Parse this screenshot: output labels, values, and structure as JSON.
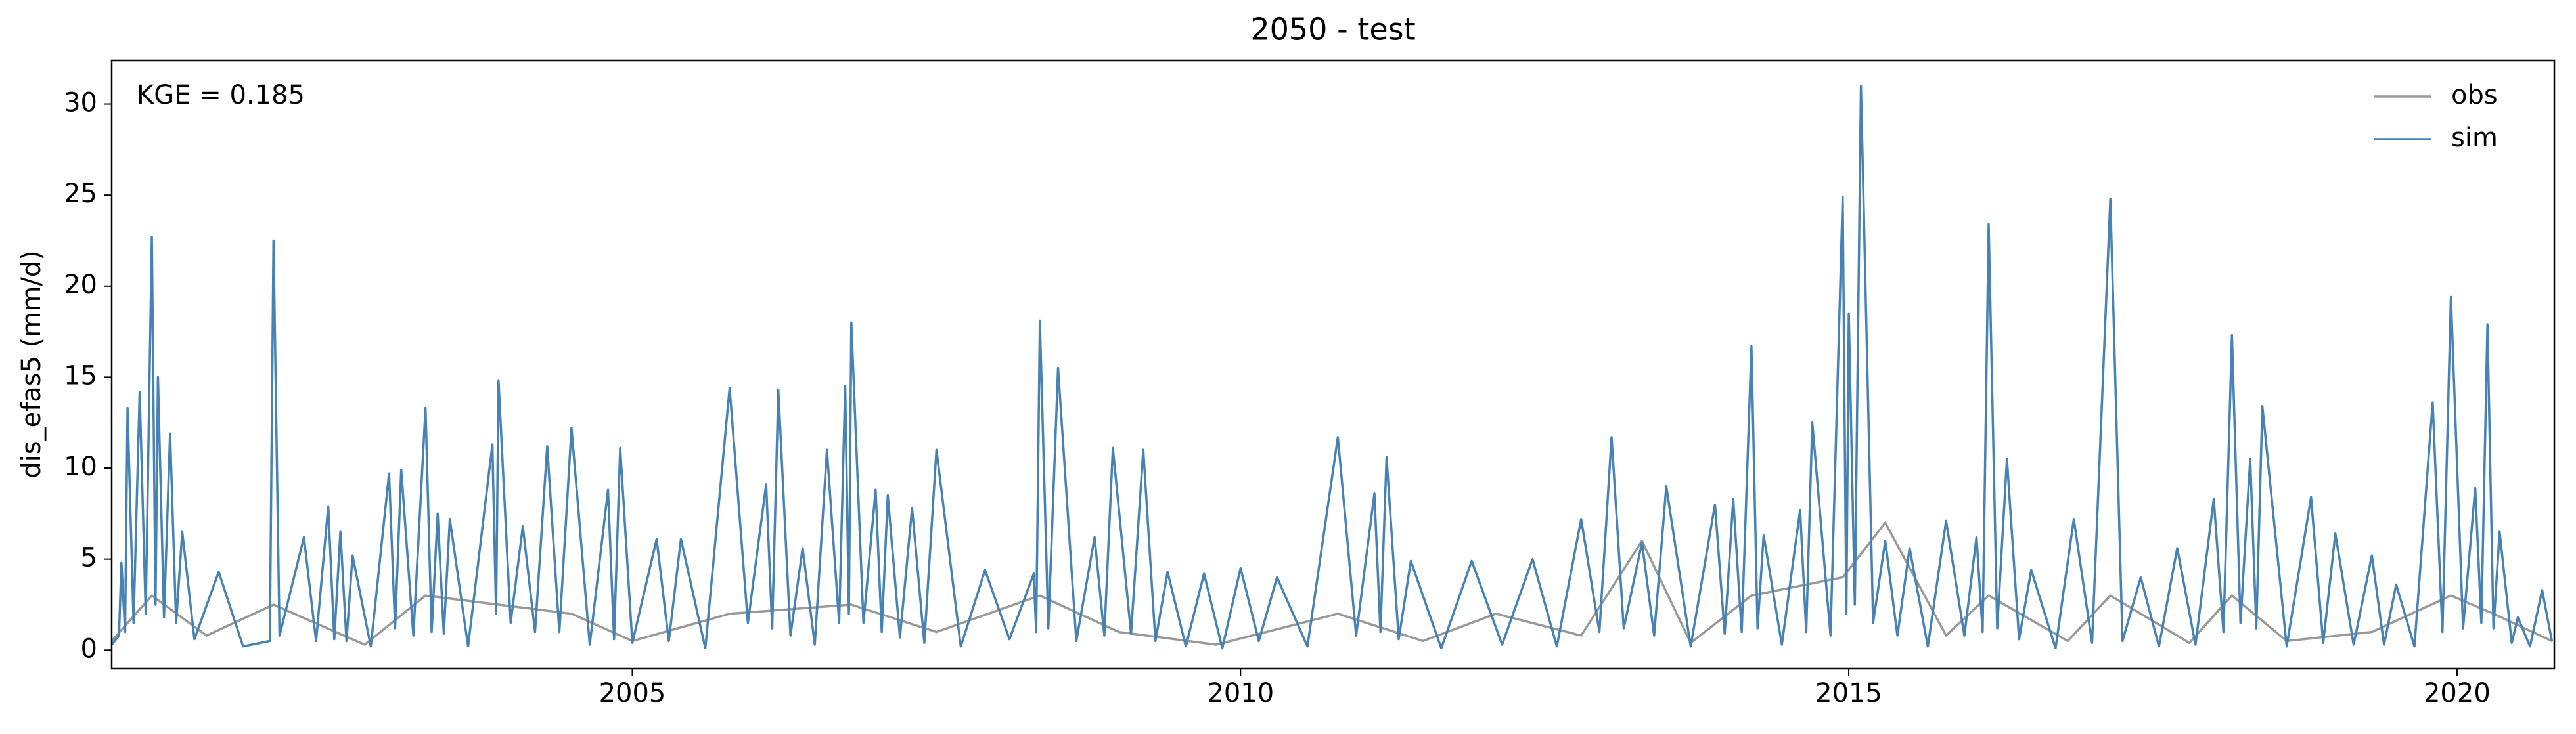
{
  "chart_data": {
    "type": "line",
    "title": "2050 - test",
    "y_label": "dis_efas5 (mm/d)",
    "annotation": "KGE = 0.185",
    "xlim": [
      2000.72,
      2020.8
    ],
    "xticks": [
      2005,
      2010,
      2015,
      2020
    ],
    "ylim": [
      -1,
      32.4
    ],
    "yticks": [
      0,
      5,
      10,
      15,
      20,
      25,
      30
    ],
    "grid": false,
    "legend": "upper right",
    "series": [
      {
        "name": "obs",
        "color": "#999999",
        "x": [
          2000.72,
          2001.05,
          2001.5,
          2002.05,
          2002.8,
          2003.3,
          2003.9,
          2004.5,
          2005.0,
          2005.8,
          2006.8,
          2007.5,
          2008.35,
          2009.0,
          2009.8,
          2010.8,
          2011.5,
          2012.1,
          2012.8,
          2013.3,
          2013.7,
          2014.2,
          2014.95,
          2015.3,
          2015.8,
          2016.15,
          2016.8,
          2017.15,
          2017.8,
          2018.15,
          2018.6,
          2019.3,
          2019.95,
          2020.3,
          2020.78
        ],
        "values": [
          0.5,
          3.0,
          0.8,
          2.5,
          0.3,
          3.0,
          2.5,
          2.0,
          0.5,
          2.0,
          2.5,
          1.0,
          3.0,
          1.0,
          0.3,
          2.0,
          0.5,
          2.0,
          0.8,
          6.0,
          0.4,
          3.0,
          4.0,
          7.0,
          0.8,
          3.0,
          0.5,
          3.0,
          0.4,
          3.0,
          0.5,
          1.0,
          3.0,
          2.0,
          0.5
        ]
      },
      {
        "name": "sim",
        "color": "#4682b4",
        "x": [
          2000.72,
          2000.78,
          2000.8,
          2000.83,
          2000.85,
          2000.9,
          2000.95,
          2001.0,
          2001.05,
          2001.08,
          2001.1,
          2001.15,
          2001.2,
          2001.25,
          2001.3,
          2001.4,
          2001.6,
          2001.8,
          2002.02,
          2002.05,
          2002.1,
          2002.3,
          2002.4,
          2002.5,
          2002.55,
          2002.6,
          2002.65,
          2002.7,
          2002.85,
          2003.0,
          2003.05,
          2003.1,
          2003.2,
          2003.3,
          2003.35,
          2003.4,
          2003.45,
          2003.5,
          2003.65,
          2003.85,
          2003.88,
          2003.9,
          2004.0,
          2004.1,
          2004.2,
          2004.3,
          2004.4,
          2004.5,
          2004.65,
          2004.8,
          2004.85,
          2004.9,
          2005.0,
          2005.2,
          2005.3,
          2005.4,
          2005.6,
          2005.8,
          2005.95,
          2006.1,
          2006.15,
          2006.2,
          2006.3,
          2006.4,
          2006.5,
          2006.6,
          2006.7,
          2006.75,
          2006.78,
          2006.8,
          2006.9,
          2007.0,
          2007.05,
          2007.1,
          2007.2,
          2007.3,
          2007.4,
          2007.5,
          2007.7,
          2007.9,
          2008.1,
          2008.3,
          2008.32,
          2008.35,
          2008.42,
          2008.5,
          2008.65,
          2008.8,
          2008.88,
          2008.95,
          2009.1,
          2009.2,
          2009.3,
          2009.4,
          2009.55,
          2009.7,
          2009.85,
          2010.0,
          2010.15,
          2010.3,
          2010.55,
          2010.8,
          2010.95,
          2011.1,
          2011.15,
          2011.2,
          2011.3,
          2011.4,
          2011.65,
          2011.9,
          2012.15,
          2012.4,
          2012.6,
          2012.8,
          2012.95,
          2013.05,
          2013.15,
          2013.3,
          2013.4,
          2013.5,
          2013.7,
          2013.9,
          2013.98,
          2014.05,
          2014.12,
          2014.2,
          2014.25,
          2014.3,
          2014.45,
          2014.6,
          2014.65,
          2014.7,
          2014.85,
          2014.95,
          2014.98,
          2015.0,
          2015.05,
          2015.1,
          2015.2,
          2015.3,
          2015.4,
          2015.5,
          2015.65,
          2015.8,
          2015.95,
          2016.05,
          2016.1,
          2016.15,
          2016.22,
          2016.3,
          2016.4,
          2016.5,
          2016.7,
          2016.85,
          2017.0,
          2017.15,
          2017.25,
          2017.4,
          2017.55,
          2017.7,
          2017.85,
          2018.0,
          2018.08,
          2018.15,
          2018.22,
          2018.3,
          2018.35,
          2018.4,
          2018.6,
          2018.8,
          2018.9,
          2019.0,
          2019.15,
          2019.3,
          2019.4,
          2019.5,
          2019.65,
          2019.8,
          2019.88,
          2019.95,
          2020.05,
          2020.15,
          2020.2,
          2020.25,
          2020.3,
          2020.35,
          2020.45,
          2020.5,
          2020.6,
          2020.7,
          2020.78
        ],
        "values": [
          0.3,
          0.8,
          4.8,
          1.0,
          13.3,
          1.5,
          14.2,
          2.0,
          22.7,
          2.5,
          15,
          1.8,
          11.9,
          1.5,
          6.5,
          0.6,
          4.3,
          0.2,
          0.5,
          22.5,
          0.8,
          6.2,
          0.5,
          7.9,
          0.6,
          6.5,
          0.5,
          5.2,
          0.2,
          9.7,
          1.2,
          9.9,
          0.8,
          13.3,
          1.0,
          7.5,
          0.9,
          7.2,
          0.2,
          11.3,
          2.0,
          14.8,
          1.5,
          6.8,
          1.0,
          11.2,
          1.0,
          12.2,
          0.3,
          8.8,
          0.6,
          11.1,
          0.4,
          6.1,
          0.5,
          6.1,
          0.1,
          14.4,
          1.5,
          9.1,
          1.2,
          14.3,
          0.8,
          5.6,
          0.3,
          11,
          1.5,
          14.5,
          2.0,
          18,
          1.5,
          8.8,
          1.0,
          8.5,
          0.7,
          7.8,
          0.4,
          11,
          0.2,
          4.4,
          0.6,
          4.2,
          1.0,
          18.1,
          1.2,
          15.5,
          0.5,
          6.2,
          0.8,
          11.1,
          0.9,
          11.0,
          0.5,
          4.3,
          0.2,
          4.2,
          0.1,
          4.5,
          0.5,
          4.0,
          0.2,
          11.7,
          0.8,
          8.6,
          1.0,
          10.6,
          0.6,
          4.9,
          0.1,
          4.9,
          0.3,
          5.0,
          0.2,
          7.2,
          1.0,
          11.7,
          1.2,
          5.9,
          0.8,
          9.0,
          0.2,
          8.0,
          0.9,
          8.3,
          1.0,
          16.7,
          1.2,
          6.3,
          0.3,
          7.7,
          1.0,
          12.5,
          0.8,
          24.9,
          2.0,
          18.5,
          2.5,
          31.0,
          1.5,
          6.0,
          0.8,
          5.6,
          0.2,
          7.1,
          0.8,
          6.2,
          1.0,
          23.4,
          1.2,
          10.5,
          0.6,
          4.4,
          0.1,
          7.2,
          0.4,
          24.8,
          0.5,
          4.0,
          0.2,
          5.6,
          0.3,
          8.3,
          1.0,
          17.3,
          1.5,
          10.5,
          1.2,
          13.4,
          0.2,
          8.4,
          0.4,
          6.4,
          0.3,
          5.2,
          0.3,
          3.6,
          0.2,
          13.6,
          1.0,
          19.4,
          1.2,
          8.9,
          1.5,
          17.9,
          1.2,
          6.5,
          0.4,
          1.8,
          0.2,
          3.3,
          0.5
        ]
      }
    ]
  }
}
